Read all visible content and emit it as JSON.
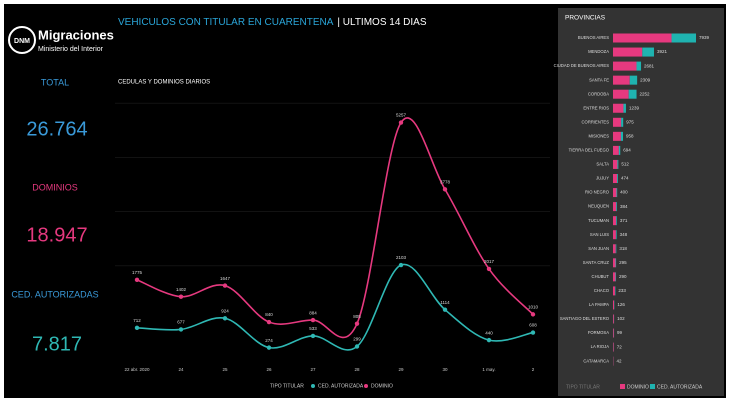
{
  "header": {
    "logo": "DNM",
    "brand": "Migraciones",
    "subtitle": "Ministerio del Interior",
    "title": "VEHICULOS CON TITULAR EN CUARENTENA",
    "title_suffix": "| ULTIMOS 14 DIAS"
  },
  "kpis": [
    {
      "label": "TOTAL",
      "value": "26.764"
    },
    {
      "label": "DOMINIOS",
      "value": "18.947"
    },
    {
      "label": "CED. AUTORIZADAS",
      "value": "7.817"
    }
  ],
  "chart_data": [
    {
      "type": "line",
      "title": "CEDULAS Y DOMINIOS DIARIOS",
      "legend_title": "TIPO TITULAR",
      "categories": [
        "22 abr. 2020",
        "24",
        "25",
        "26",
        "27",
        "28",
        "29",
        "30",
        "1 may.",
        "2"
      ],
      "series": [
        {
          "name": "CED. AUTORIZADA",
          "color": "#2fb8b4",
          "values": [
            712,
            677,
            924,
            274,
            533,
            299,
            2103,
            1114,
            440,
            608
          ]
        },
        {
          "name": "DOMINIO",
          "color": "#e6397f",
          "values": [
            1775,
            1402,
            1647,
            840,
            884,
            805,
            5257,
            3778,
            2017,
            1010
          ]
        }
      ],
      "ylim": [
        0,
        6000
      ]
    },
    {
      "type": "hbar",
      "title": "PROVINCIAS",
      "legend_title": "TIPO TITULAR",
      "stacked": true,
      "categories": [
        "BUENOS AIRES",
        "MENDOZA",
        "CIUDAD DE BUENOS AIRES",
        "SANTA FE",
        "CORDOBA",
        "ENTRE RIOS",
        "CORRIENTES",
        "MISIONES",
        "TIERRA DEL FUEGO",
        "SALTA",
        "JUJUY",
        "RIO NEGRO",
        "NEUQUEN",
        "TUCUMAN",
        "SAN LUIS",
        "SAN JUAN",
        "SANTA CRUZ",
        "CHUBUT",
        "CHACO",
        "LA PAMPA",
        "SANTIAGO DEL ESTERO",
        "FORMOSA",
        "LA RIOJA",
        "CATAMARCA"
      ],
      "series": [
        {
          "name": "DOMINIO",
          "color": "#e6397f",
          "values": [
            5600,
            2800,
            2250,
            1600,
            1500,
            1000,
            780,
            760,
            560,
            420,
            390,
            330,
            310,
            300,
            280,
            260,
            240,
            235,
            190,
            100,
            85,
            80,
            60,
            35
          ]
        },
        {
          "name": "CED. AUTORIZADA",
          "color": "#1fb3b0",
          "values": [
            2339,
            1121,
            431,
            709,
            752,
            239,
            195,
            198,
            134,
            92,
            84,
            70,
            74,
            71,
            68,
            58,
            55,
            55,
            43,
            26,
            17,
            19,
            12,
            7
          ]
        }
      ],
      "totals": [
        7939,
        3921,
        2681,
        2309,
        2252,
        1239,
        975,
        958,
        694,
        512,
        474,
        400,
        384,
        371,
        348,
        318,
        295,
        290,
        233,
        126,
        102,
        99,
        72,
        42
      ],
      "xlim": [
        0,
        7939
      ]
    }
  ]
}
